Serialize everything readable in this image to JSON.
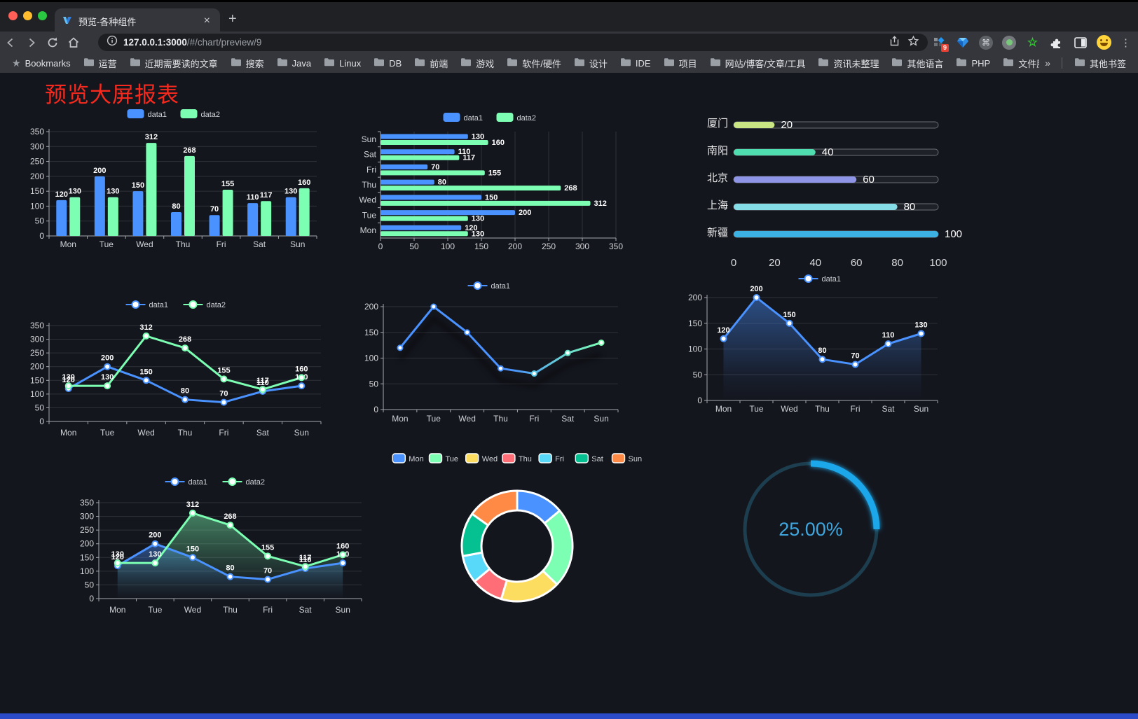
{
  "browser": {
    "tab_title": "预览-各种组件",
    "new_tab_label": "+",
    "close_tab_label": "×",
    "url_host": "127.0.0.1:3000",
    "url_path": "/#/chart/preview/9",
    "bookmarks_label": "Bookmarks",
    "bookmarks": [
      "运营",
      "近期需要读的文章",
      "搜索",
      "Java",
      "Linux",
      "DB",
      "前端",
      "游戏",
      "软件/硬件",
      "设计",
      "IDE",
      "项目",
      "网站/博客/文章/工具",
      "资讯未整理",
      "其他语言",
      "PHP",
      "文件服务器"
    ],
    "bookmarks_overflow": "»",
    "other_bookmarks": "其他书签",
    "extension_badge": "9",
    "menu_icon": "⋮"
  },
  "page": {
    "title": "预览大屏报表",
    "title_color": "#f5291d",
    "background_color": "#14161e",
    "footer_color": "#2b4bc8"
  },
  "chart_data": [
    {
      "id": "bar-vertical",
      "type": "bar",
      "categories": [
        "Mon",
        "Tue",
        "Wed",
        "Thu",
        "Fri",
        "Sat",
        "Sun"
      ],
      "series": [
        {
          "name": "data1",
          "color": "#4992ff",
          "values": [
            120,
            200,
            150,
            80,
            70,
            110,
            130
          ]
        },
        {
          "name": "data2",
          "color": "#7cffb2",
          "values": [
            130,
            130,
            312,
            268,
            155,
            117,
            160
          ]
        }
      ],
      "ylim": [
        0,
        350
      ],
      "yticks": [
        0,
        50,
        100,
        150,
        200,
        250,
        300,
        350
      ],
      "legend_position": "top",
      "value_labels": true,
      "grid": true
    },
    {
      "id": "bar-horizontal",
      "type": "bar-horizontal",
      "categories": [
        "Mon",
        "Tue",
        "Wed",
        "Thu",
        "Fri",
        "Sat",
        "Sun"
      ],
      "category_order": "bottom-to-top",
      "series": [
        {
          "name": "data1",
          "color": "#4992ff",
          "values": [
            120,
            200,
            150,
            80,
            70,
            110,
            130
          ]
        },
        {
          "name": "data2",
          "color": "#7cffb2",
          "values": [
            130,
            130,
            312,
            268,
            155,
            117,
            160
          ]
        }
      ],
      "xlim": [
        0,
        350
      ],
      "xticks": [
        0,
        50,
        100,
        150,
        200,
        250,
        300,
        350
      ],
      "legend_position": "top",
      "value_labels": true,
      "grid": true
    },
    {
      "id": "city-progress",
      "type": "bar-progress",
      "categories": [
        "厦门",
        "南阳",
        "北京",
        "上海",
        "新疆"
      ],
      "values": [
        20,
        40,
        60,
        80,
        100
      ],
      "colors": [
        "#c9e584",
        "#4fdcae",
        "#8e95e6",
        "#85dde7",
        "#3cb1e3"
      ],
      "xlim": [
        0,
        100
      ],
      "xticks": [
        0,
        20,
        40,
        60,
        80,
        100
      ],
      "value_labels": true
    },
    {
      "id": "line-two-series",
      "type": "line",
      "categories": [
        "Mon",
        "Tue",
        "Wed",
        "Thu",
        "Fri",
        "Sat",
        "Sun"
      ],
      "series": [
        {
          "name": "data1",
          "color": "#4992ff",
          "values": [
            120,
            200,
            150,
            80,
            70,
            110,
            130
          ]
        },
        {
          "name": "data2",
          "color": "#7cffb2",
          "values": [
            130,
            130,
            312,
            268,
            155,
            117,
            160
          ]
        }
      ],
      "ylim": [
        0,
        350
      ],
      "yticks": [
        0,
        50,
        100,
        150,
        200,
        250,
        300,
        350
      ],
      "legend_position": "top",
      "value_labels": true,
      "grid": true
    },
    {
      "id": "line-gradient",
      "type": "line-gradient",
      "categories": [
        "Mon",
        "Tue",
        "Wed",
        "Thu",
        "Fri",
        "Sat",
        "Sun"
      ],
      "series": [
        {
          "name": "data1",
          "color_start": "#4992ff",
          "color_end": "#7cffb2",
          "values": [
            120,
            200,
            150,
            80,
            70,
            110,
            130
          ]
        }
      ],
      "ylim": [
        0,
        200
      ],
      "yticks": [
        0,
        50,
        100,
        150,
        200
      ],
      "legend_position": "top",
      "value_labels": false,
      "grid": true
    },
    {
      "id": "area-single",
      "type": "area",
      "categories": [
        "Mon",
        "Tue",
        "Wed",
        "Thu",
        "Fri",
        "Sat",
        "Sun"
      ],
      "series": [
        {
          "name": "data1",
          "color": "#4992ff",
          "values": [
            120,
            200,
            150,
            80,
            70,
            110,
            130
          ]
        }
      ],
      "ylim": [
        0,
        200
      ],
      "yticks": [
        0,
        50,
        100,
        150,
        200
      ],
      "legend_position": "top",
      "value_labels": true,
      "grid": true
    },
    {
      "id": "area-two-series",
      "type": "area",
      "categories": [
        "Mon",
        "Tue",
        "Wed",
        "Thu",
        "Fri",
        "Sat",
        "Sun"
      ],
      "series": [
        {
          "name": "data1",
          "color": "#4992ff",
          "values": [
            120,
            200,
            150,
            80,
            70,
            110,
            130
          ]
        },
        {
          "name": "data2",
          "color": "#7cffb2",
          "values": [
            130,
            130,
            312,
            268,
            155,
            117,
            160
          ]
        }
      ],
      "ylim": [
        0,
        350
      ],
      "yticks": [
        0,
        50,
        100,
        150,
        200,
        250,
        300,
        350
      ],
      "legend_position": "top",
      "value_labels": true,
      "grid": true
    },
    {
      "id": "week-donut",
      "type": "pie",
      "donut": true,
      "categories": [
        "Mon",
        "Tue",
        "Wed",
        "Thu",
        "Fri",
        "Sat",
        "Sun"
      ],
      "values": [
        120,
        200,
        150,
        80,
        70,
        110,
        130
      ],
      "colors": [
        "#4992ff",
        "#7cffb2",
        "#fddd60",
        "#ff6e76",
        "#58d9f9",
        "#05c091",
        "#ff8a45"
      ],
      "legend_position": "top"
    },
    {
      "id": "percent-gauge",
      "type": "gauge",
      "value": 25,
      "max": 100,
      "label": "25.00%",
      "color": "#1ba7ea",
      "track_color": "#1d3e4e",
      "text_color": "#3fa6de"
    }
  ]
}
